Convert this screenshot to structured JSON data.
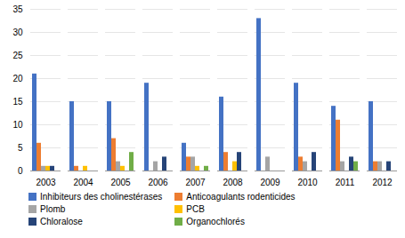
{
  "chart_data": {
    "type": "bar",
    "categories": [
      "2003",
      "2004",
      "2005",
      "2006",
      "2007",
      "2008",
      "2009",
      "2010",
      "2011",
      "2012"
    ],
    "series": [
      {
        "name": "Inhibiteurs des cholinestérases",
        "color": "#4472C4",
        "values": [
          21,
          15,
          15,
          19,
          6,
          16,
          33,
          19,
          14,
          15
        ]
      },
      {
        "name": "Anticoagulants rodenticides",
        "color": "#ED7D31",
        "values": [
          6,
          1,
          7,
          0,
          3,
          4,
          0,
          3,
          11,
          2
        ]
      },
      {
        "name": "Plomb",
        "color": "#A5A5A5",
        "values": [
          1,
          0,
          2,
          2,
          3,
          0,
          3,
          2,
          2,
          2
        ]
      },
      {
        "name": "PCB",
        "color": "#FFC000",
        "values": [
          1,
          1,
          1,
          0,
          1,
          2,
          0,
          0,
          0,
          0
        ]
      },
      {
        "name": "Chloralose",
        "color": "#264478",
        "values": [
          1,
          0,
          0,
          3,
          0,
          4,
          0,
          4,
          3,
          2
        ]
      },
      {
        "name": "Organochlorés",
        "color": "#70AD47",
        "values": [
          0,
          0,
          4,
          0,
          1,
          0,
          0,
          0,
          2,
          0
        ]
      }
    ],
    "ylim": [
      0,
      35
    ],
    "yticks": [
      0,
      5,
      10,
      15,
      20,
      25,
      30,
      35
    ],
    "grid": true,
    "legend": "bottom"
  }
}
